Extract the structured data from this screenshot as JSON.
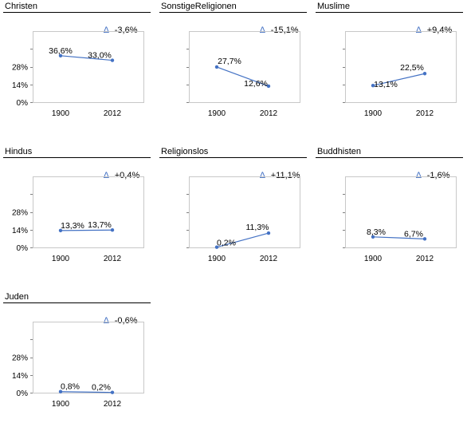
{
  "chart_data": [
    {
      "type": "line",
      "title": "Christen",
      "delta": "-3,6%",
      "categories": [
        "1900",
        "2012"
      ],
      "values": [
        36.6,
        33.0
      ],
      "value_labels": [
        "36,6%",
        "33,0%"
      ],
      "y_ticks": [
        "0%",
        "14%",
        "28%"
      ],
      "ylim": [
        0,
        56
      ],
      "grid": false
    },
    {
      "type": "line",
      "title": "SonstigeReligionen",
      "delta": "-15,1%",
      "categories": [
        "1900",
        "2012"
      ],
      "values": [
        27.7,
        12.6
      ],
      "value_labels": [
        "27,7%",
        "12,6%"
      ],
      "y_ticks": [],
      "ylim": [
        0,
        56
      ],
      "grid": false
    },
    {
      "type": "line",
      "title": "Muslime",
      "delta": "+9,4%",
      "categories": [
        "1900",
        "2012"
      ],
      "values": [
        13.1,
        22.5
      ],
      "value_labels": [
        "13,1%",
        "22,5%"
      ],
      "y_ticks": [],
      "ylim": [
        0,
        56
      ],
      "grid": false
    },
    {
      "type": "line",
      "title": "Hindus",
      "delta": "+0,4%",
      "categories": [
        "1900",
        "2012"
      ],
      "values": [
        13.3,
        13.7
      ],
      "value_labels": [
        "13,3%",
        "13,7%"
      ],
      "y_ticks": [
        "0%",
        "14%",
        "28%"
      ],
      "ylim": [
        0,
        56
      ],
      "grid": false
    },
    {
      "type": "line",
      "title": "Religionslos",
      "delta": "+11,1%",
      "categories": [
        "1900",
        "2012"
      ],
      "values": [
        0.2,
        11.3
      ],
      "value_labels": [
        "0,2%",
        "11,3%"
      ],
      "y_ticks": [],
      "ylim": [
        0,
        56
      ],
      "grid": false
    },
    {
      "type": "line",
      "title": "Buddhisten",
      "delta": "-1,6%",
      "categories": [
        "1900",
        "2012"
      ],
      "values": [
        8.3,
        6.7
      ],
      "value_labels": [
        "8,3%",
        "6,7%"
      ],
      "y_ticks": [],
      "ylim": [
        0,
        56
      ],
      "grid": false
    },
    {
      "type": "line",
      "title": "Juden",
      "delta": "-0,6%",
      "categories": [
        "1900",
        "2012"
      ],
      "values": [
        0.8,
        0.2
      ],
      "value_labels": [
        "0,8%",
        "0,2%"
      ],
      "y_ticks": [
        "0%",
        "14%",
        "28%"
      ],
      "ylim": [
        0,
        56
      ],
      "grid": false
    }
  ],
  "style": {
    "line_color": "#4472c4",
    "frame_color": "#c8c8c8",
    "delta_icon": "delta-triangle-icon",
    "delta_glyph": "∆"
  }
}
